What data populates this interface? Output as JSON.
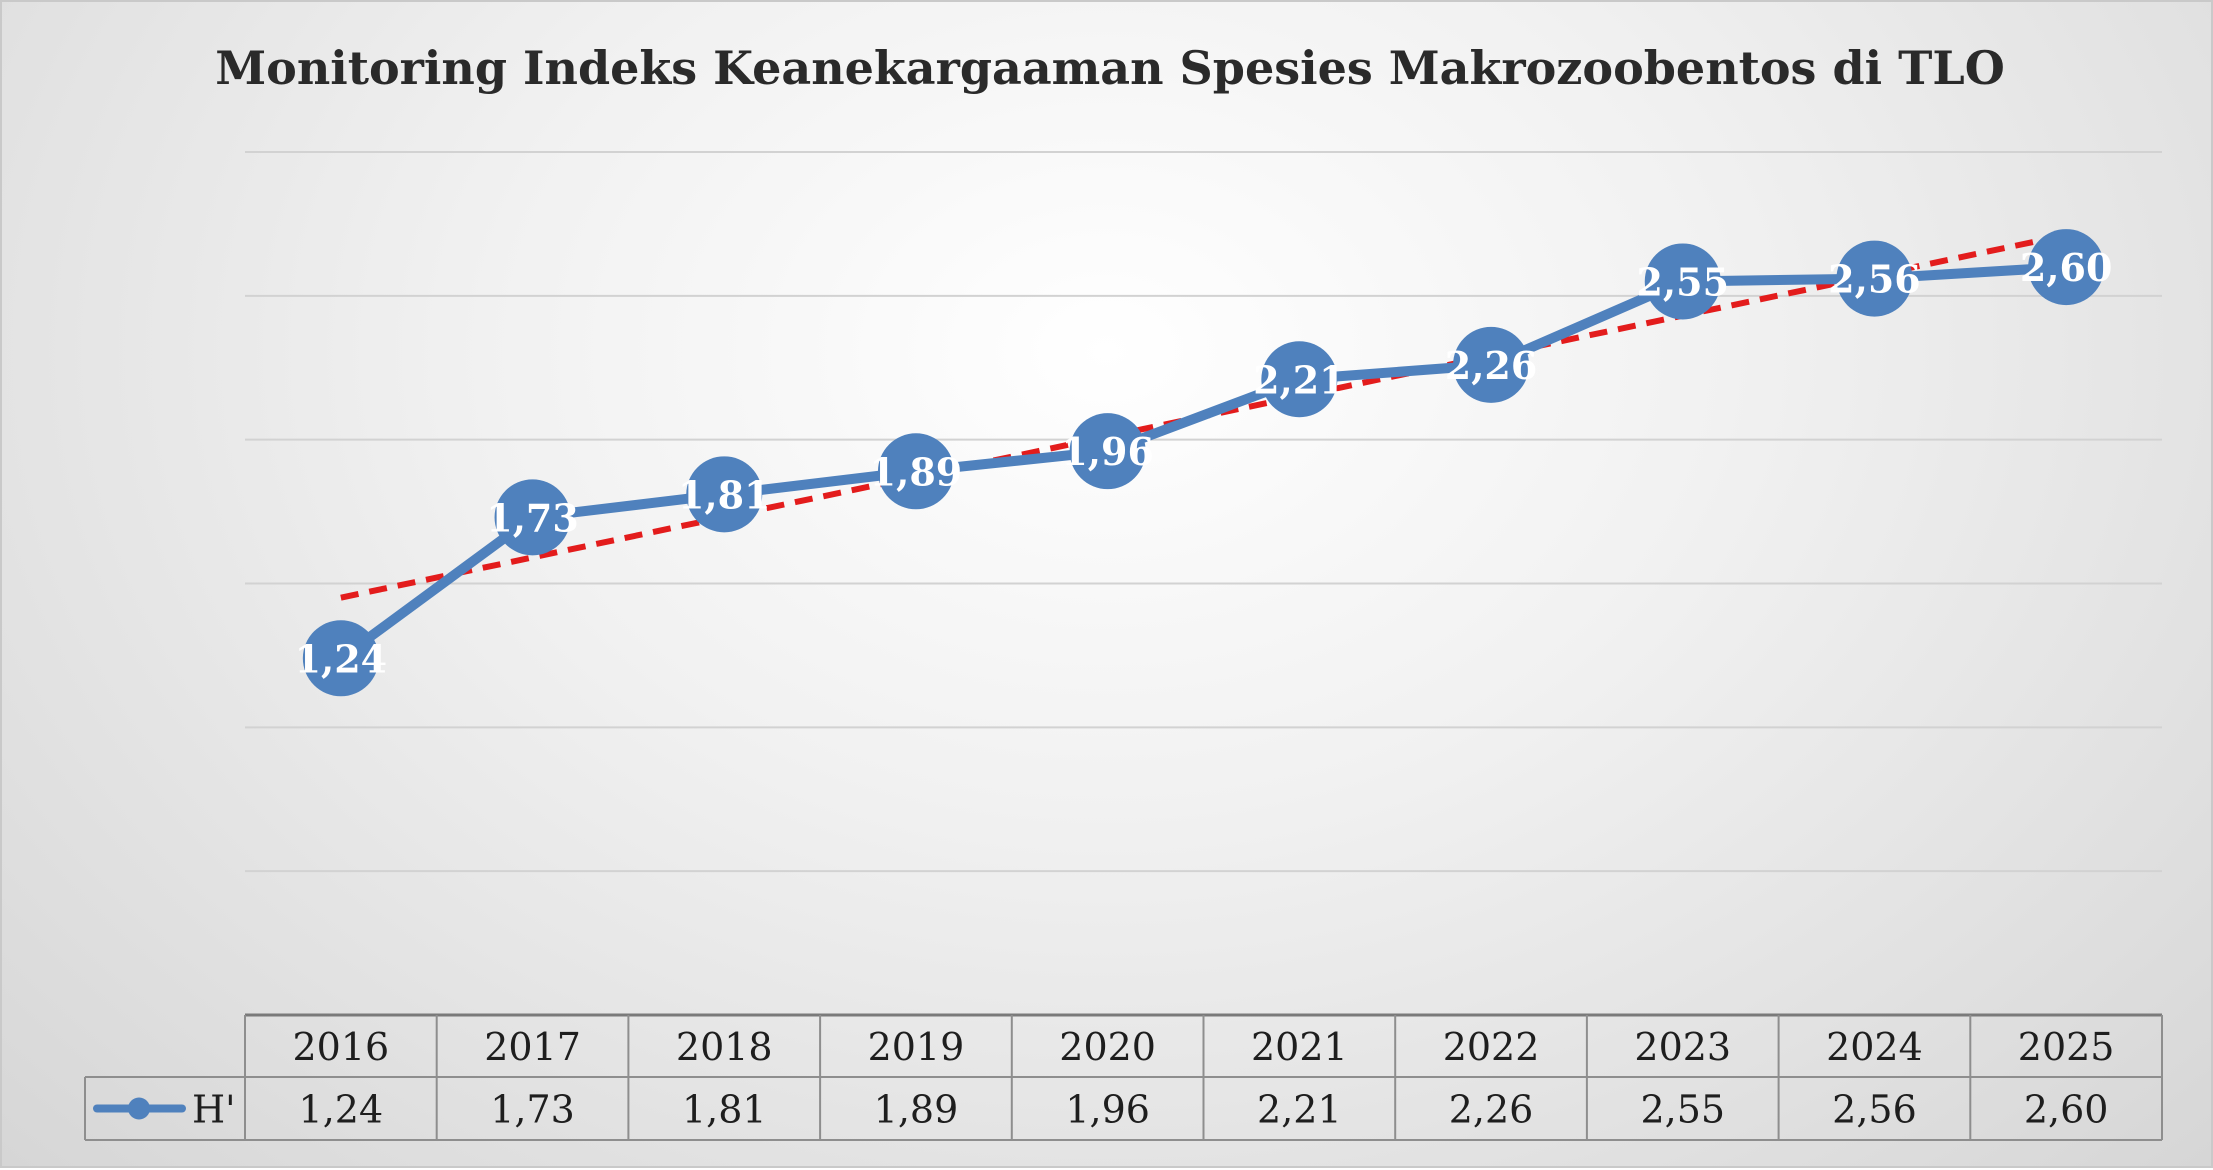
{
  "chart_data": {
    "type": "line",
    "title": "Monitoring Indeks Keanekargaaman Spesies Makrozoobentos di TLO",
    "categories": [
      "2016",
      "2017",
      "2018",
      "2019",
      "2020",
      "2021",
      "2022",
      "2023",
      "2024",
      "2025"
    ],
    "series": [
      {
        "name": "H'",
        "values": [
          1.24,
          1.73,
          1.81,
          1.89,
          1.96,
          2.21,
          2.26,
          2.55,
          2.56,
          2.6
        ],
        "labels": [
          "1,24",
          "1,73",
          "1,81",
          "1,89",
          "1,96",
          "2,21",
          "2,26",
          "2,55",
          "2,56",
          "2,60"
        ],
        "color": "#4f81bd",
        "marker": "circle"
      }
    ],
    "trendline": {
      "type": "linear",
      "color": "#e31c1c",
      "style": "dashed"
    },
    "ylim": [
      0,
      3
    ],
    "grid": true,
    "legend": "data-table-left",
    "xlabel": "",
    "ylabel": ""
  }
}
